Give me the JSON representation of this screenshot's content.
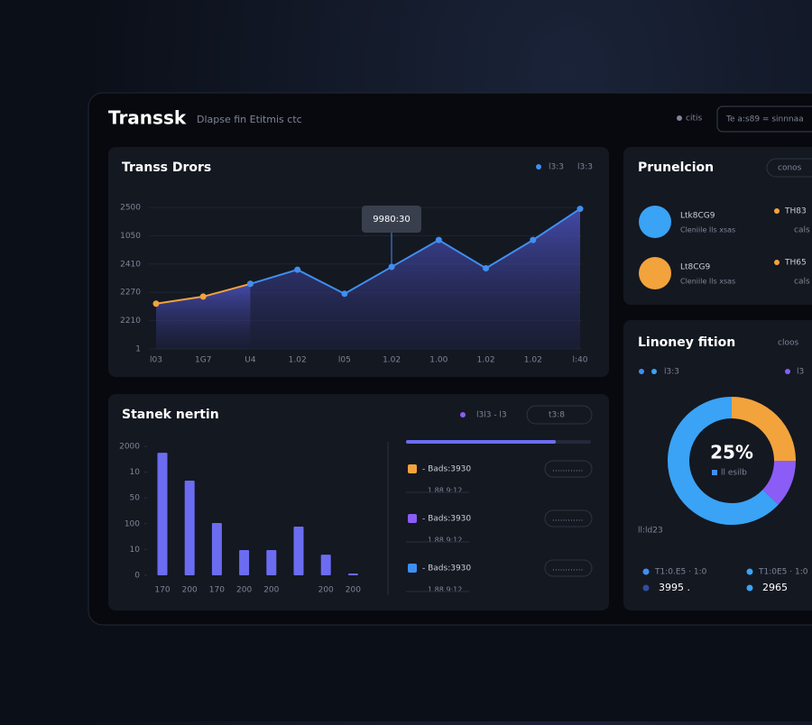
{
  "header": {
    "title": "Transsk",
    "subtitle": "Dlapse fin Etitmis ctc",
    "status": "citis",
    "search": "Te  a:s89  = sinnnaa"
  },
  "line_card": {
    "chart_data": {
      "type": "line",
      "title": "Transs Drors",
      "legend": [
        "l3:3",
        "l3:3"
      ],
      "categories": [
        "l03",
        "1G7",
        "U4",
        "1.02",
        "l05",
        "1.02",
        "1.00",
        "1.02",
        "1.02",
        "l:40"
      ],
      "series": [
        {
          "color": "#f2a33c",
          "values": [
            1.6,
            1.85,
            2.3,
            null,
            null,
            null,
            null,
            null,
            null,
            null
          ]
        },
        {
          "color": "#3f8ff0",
          "values": [
            null,
            null,
            2.3,
            2.8,
            1.95,
            2.9,
            3.85,
            2.85,
            3.85,
            4.95
          ]
        }
      ],
      "ylim": [
        0,
        5
      ],
      "yticks": [
        {
          "value": 0,
          "label": "1"
        },
        {
          "value": 1,
          "label": "2210"
        },
        {
          "value": 2,
          "label": "2270"
        },
        {
          "value": 3,
          "label": "2410"
        },
        {
          "value": 4,
          "label": "1050"
        },
        {
          "value": 5,
          "label": "2500"
        }
      ],
      "tooltip": "9980:30"
    }
  },
  "bar_card": {
    "chart_data": {
      "type": "bar",
      "title": "Stanek nertin",
      "legend": "l3l3 - l3",
      "button": "t3:8",
      "color": "#6b6cf0",
      "categories": [
        "170",
        "200",
        "170",
        "200",
        "200",
        null,
        "200",
        "200"
      ],
      "values": [
        4.75,
        3.67,
        2.03,
        0.98,
        0.98,
        1.89,
        0.8,
        0.07
      ],
      "ylim": [
        0,
        5
      ],
      "yticks": [
        {
          "value": 0,
          "label": "0"
        },
        {
          "value": 1,
          "label": "10"
        },
        {
          "value": 2,
          "label": "100"
        },
        {
          "value": 3,
          "label": "50"
        },
        {
          "value": 4,
          "label": "10"
        },
        {
          "value": 5,
          "label": "2000"
        }
      ]
    },
    "progress": 81,
    "items": [
      {
        "label": "- Bads:3930",
        "meta": "1.88   9:12",
        "button": "............",
        "color": "#f2a33c"
      },
      {
        "label": "- Bads:3930",
        "meta": "1.88   9:12",
        "button": "............",
        "color": "#8b5cf6"
      },
      {
        "label": "- Bads:3930",
        "meta": "1.88   9:12",
        "button": "............",
        "color": "#3f8ff0"
      }
    ]
  },
  "profile_card": {
    "title": "Prunelcion",
    "button": "conos",
    "items": [
      {
        "name": "Ltk8CG9",
        "sub": "Cleniile Ils xsas",
        "tag": "TH83",
        "tag_sub": "cals",
        "color": "#3aa3f5"
      },
      {
        "name": "Lt8CG9",
        "sub": "Cleniile Ils xsas",
        "tag": "TH65",
        "tag_sub": "cals",
        "color": "#f2a33c"
      }
    ]
  },
  "donut_card": {
    "chart_data": {
      "type": "pie",
      "title": "Linoney fition",
      "button": "cloos",
      "legend": [
        "l3:3",
        "l3"
      ],
      "values": [
        25,
        12,
        63
      ],
      "value_labels": [
        "25%",
        null,
        null
      ],
      "colors": [
        "#f2a33c",
        "#8b5cf6",
        "#3aa3f5"
      ],
      "center_sub": "ll esilb",
      "note": "ll:ld23",
      "stats": [
        {
          "label": "T1:0.E5 · 1:0",
          "value": "3995 ."
        },
        {
          "label": "T1:0E5 · 1:0",
          "value": "2965"
        }
      ]
    }
  }
}
